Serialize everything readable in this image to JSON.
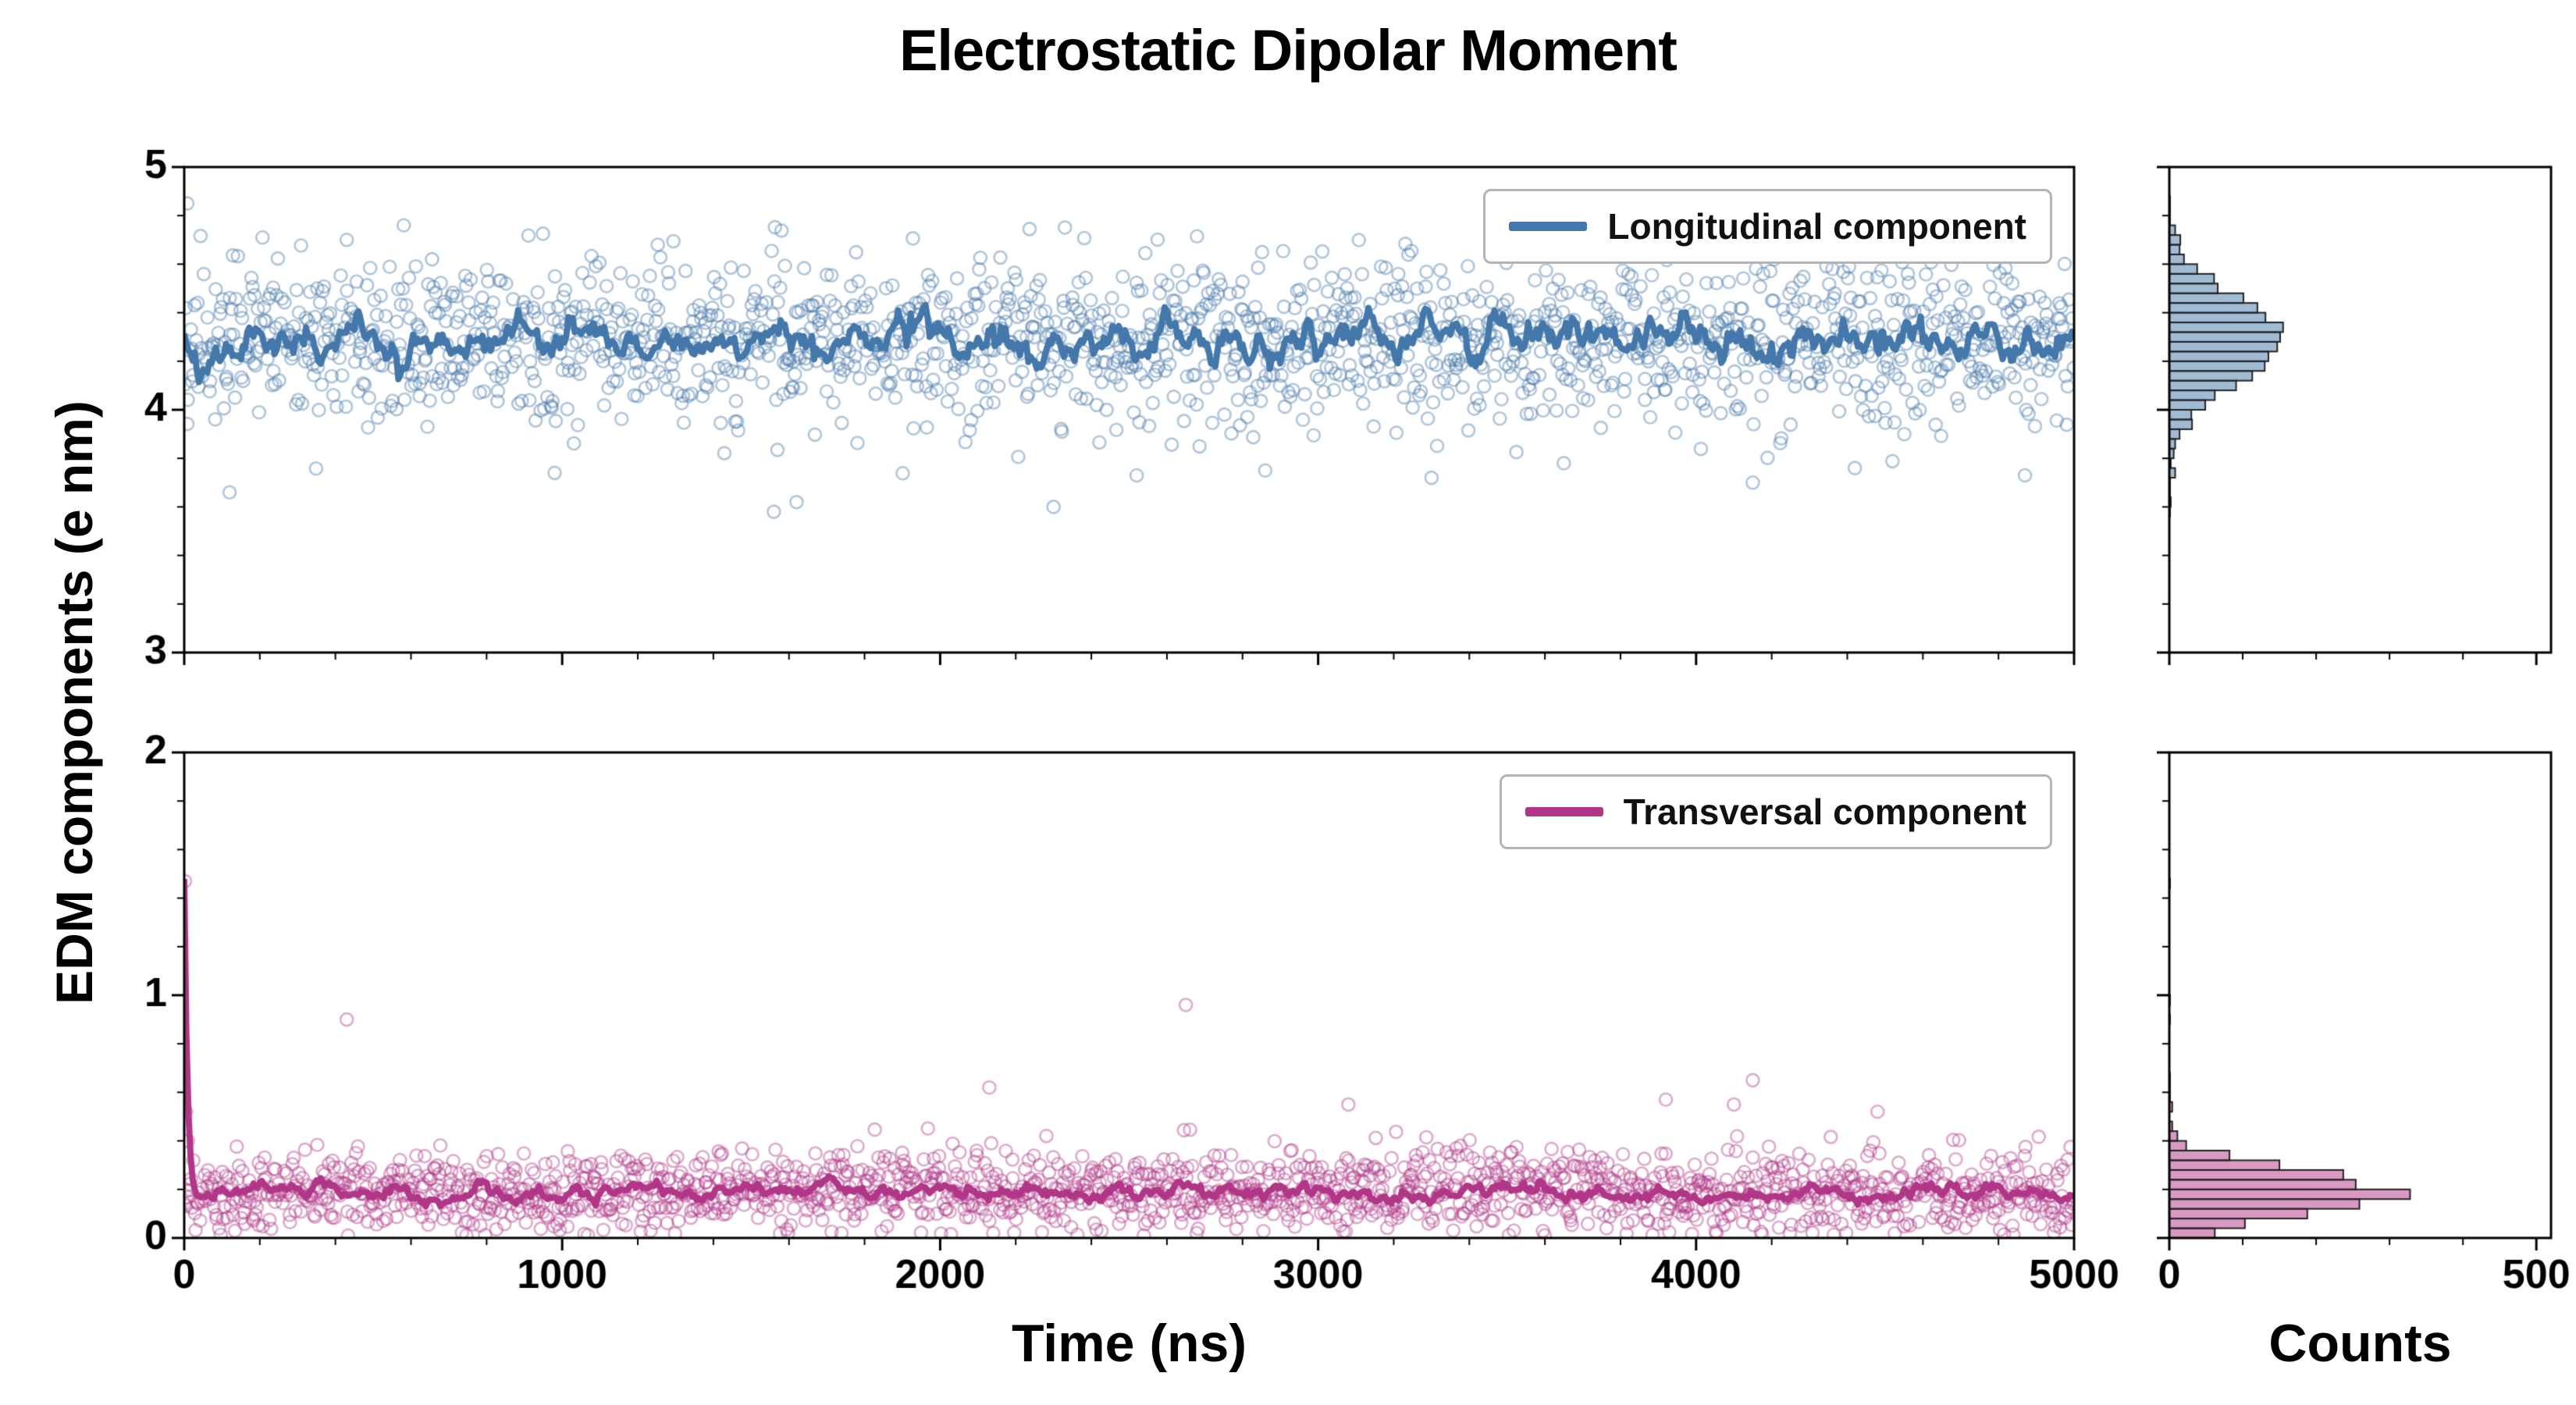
{
  "chart_data": {
    "type": "scatter",
    "title": "Electrostatic Dipolar Moment",
    "xlabel": "Time (ns)",
    "ylabel": "EDM components (e nm)",
    "hist_counts_label": "Counts",
    "grid": false,
    "legend_position": "upper right",
    "panels": [
      {
        "name": "longitudinal",
        "legend_label": "Longitudinal component",
        "color": "#4477aa",
        "scatter_rgba": "rgba(68,119,170,0.42)",
        "hist_fill_rgba": "rgba(68,119,170,0.5)",
        "hist_edge_color": "#222222",
        "xlim": [
          0,
          5000
        ],
        "xticks": [
          0,
          1000,
          2000,
          3000,
          4000,
          5000
        ],
        "x_minor_step": 200,
        "show_x_tick_labels": false,
        "ylim": [
          3,
          5
        ],
        "yticks": [
          3,
          4,
          5
        ],
        "y_minor_step": 0.2,
        "n_points": 1700,
        "mean": 4.28,
        "std": 0.17,
        "line_smooth_std": 0.055,
        "clip_min": null,
        "line_spike": null,
        "seed": 20240707,
        "outliers": [
          [
            8,
            4.85
          ],
          [
            120,
            3.66
          ],
          [
            430,
            4.7
          ],
          [
            980,
            3.74
          ],
          [
            1560,
            3.58
          ],
          [
            1620,
            3.62
          ],
          [
            2300,
            3.6
          ],
          [
            2520,
            3.73
          ],
          [
            2860,
            3.75
          ],
          [
            3300,
            3.72
          ],
          [
            3650,
            3.78
          ],
          [
            4150,
            3.7
          ],
          [
            4420,
            3.76
          ],
          [
            4870,
            3.73
          ]
        ],
        "histogram": {
          "orientation": "horizontal",
          "xlim": [
            0,
            520
          ],
          "xticks": [
            0,
            500
          ],
          "x_minor_step": 100,
          "bin_width": 0.04,
          "approx_peak_count": 165,
          "show_x_tick_labels": false
        }
      },
      {
        "name": "transversal",
        "legend_label": "Transversal component",
        "color": "#b13687",
        "scatter_rgba": "rgba(177,54,135,0.42)",
        "hist_fill_rgba": "rgba(177,54,135,0.5)",
        "hist_edge_color": "#222222",
        "xlim": [
          0,
          5000
        ],
        "xticks": [
          0,
          1000,
          2000,
          3000,
          4000,
          5000
        ],
        "x_minor_step": 200,
        "show_x_tick_labels": true,
        "ylim": [
          0,
          2
        ],
        "yticks": [
          0,
          1,
          2
        ],
        "y_minor_step": 0.2,
        "n_points": 1700,
        "mean": 0.19,
        "std": 0.085,
        "line_smooth_std": 0.022,
        "clip_min": 0.01,
        "line_spike": {
          "peak": 1.3,
          "decay_ns": 8
        },
        "seed": 424242,
        "outliers": [
          [
            2,
            1.47
          ],
          [
            5,
            0.52
          ],
          [
            10,
            0.4
          ],
          [
            430,
            0.9
          ],
          [
            2130,
            0.62
          ],
          [
            2650,
            0.96
          ],
          [
            3080,
            0.55
          ],
          [
            3920,
            0.57
          ],
          [
            4100,
            0.55
          ],
          [
            4150,
            0.65
          ],
          [
            4480,
            0.52
          ]
        ],
        "histogram": {
          "orientation": "horizontal",
          "xlim": [
            0,
            520
          ],
          "xticks": [
            0,
            500
          ],
          "x_minor_step": 100,
          "bin_width": 0.04,
          "approx_peak_count": 300,
          "show_x_tick_labels": true
        }
      }
    ]
  }
}
